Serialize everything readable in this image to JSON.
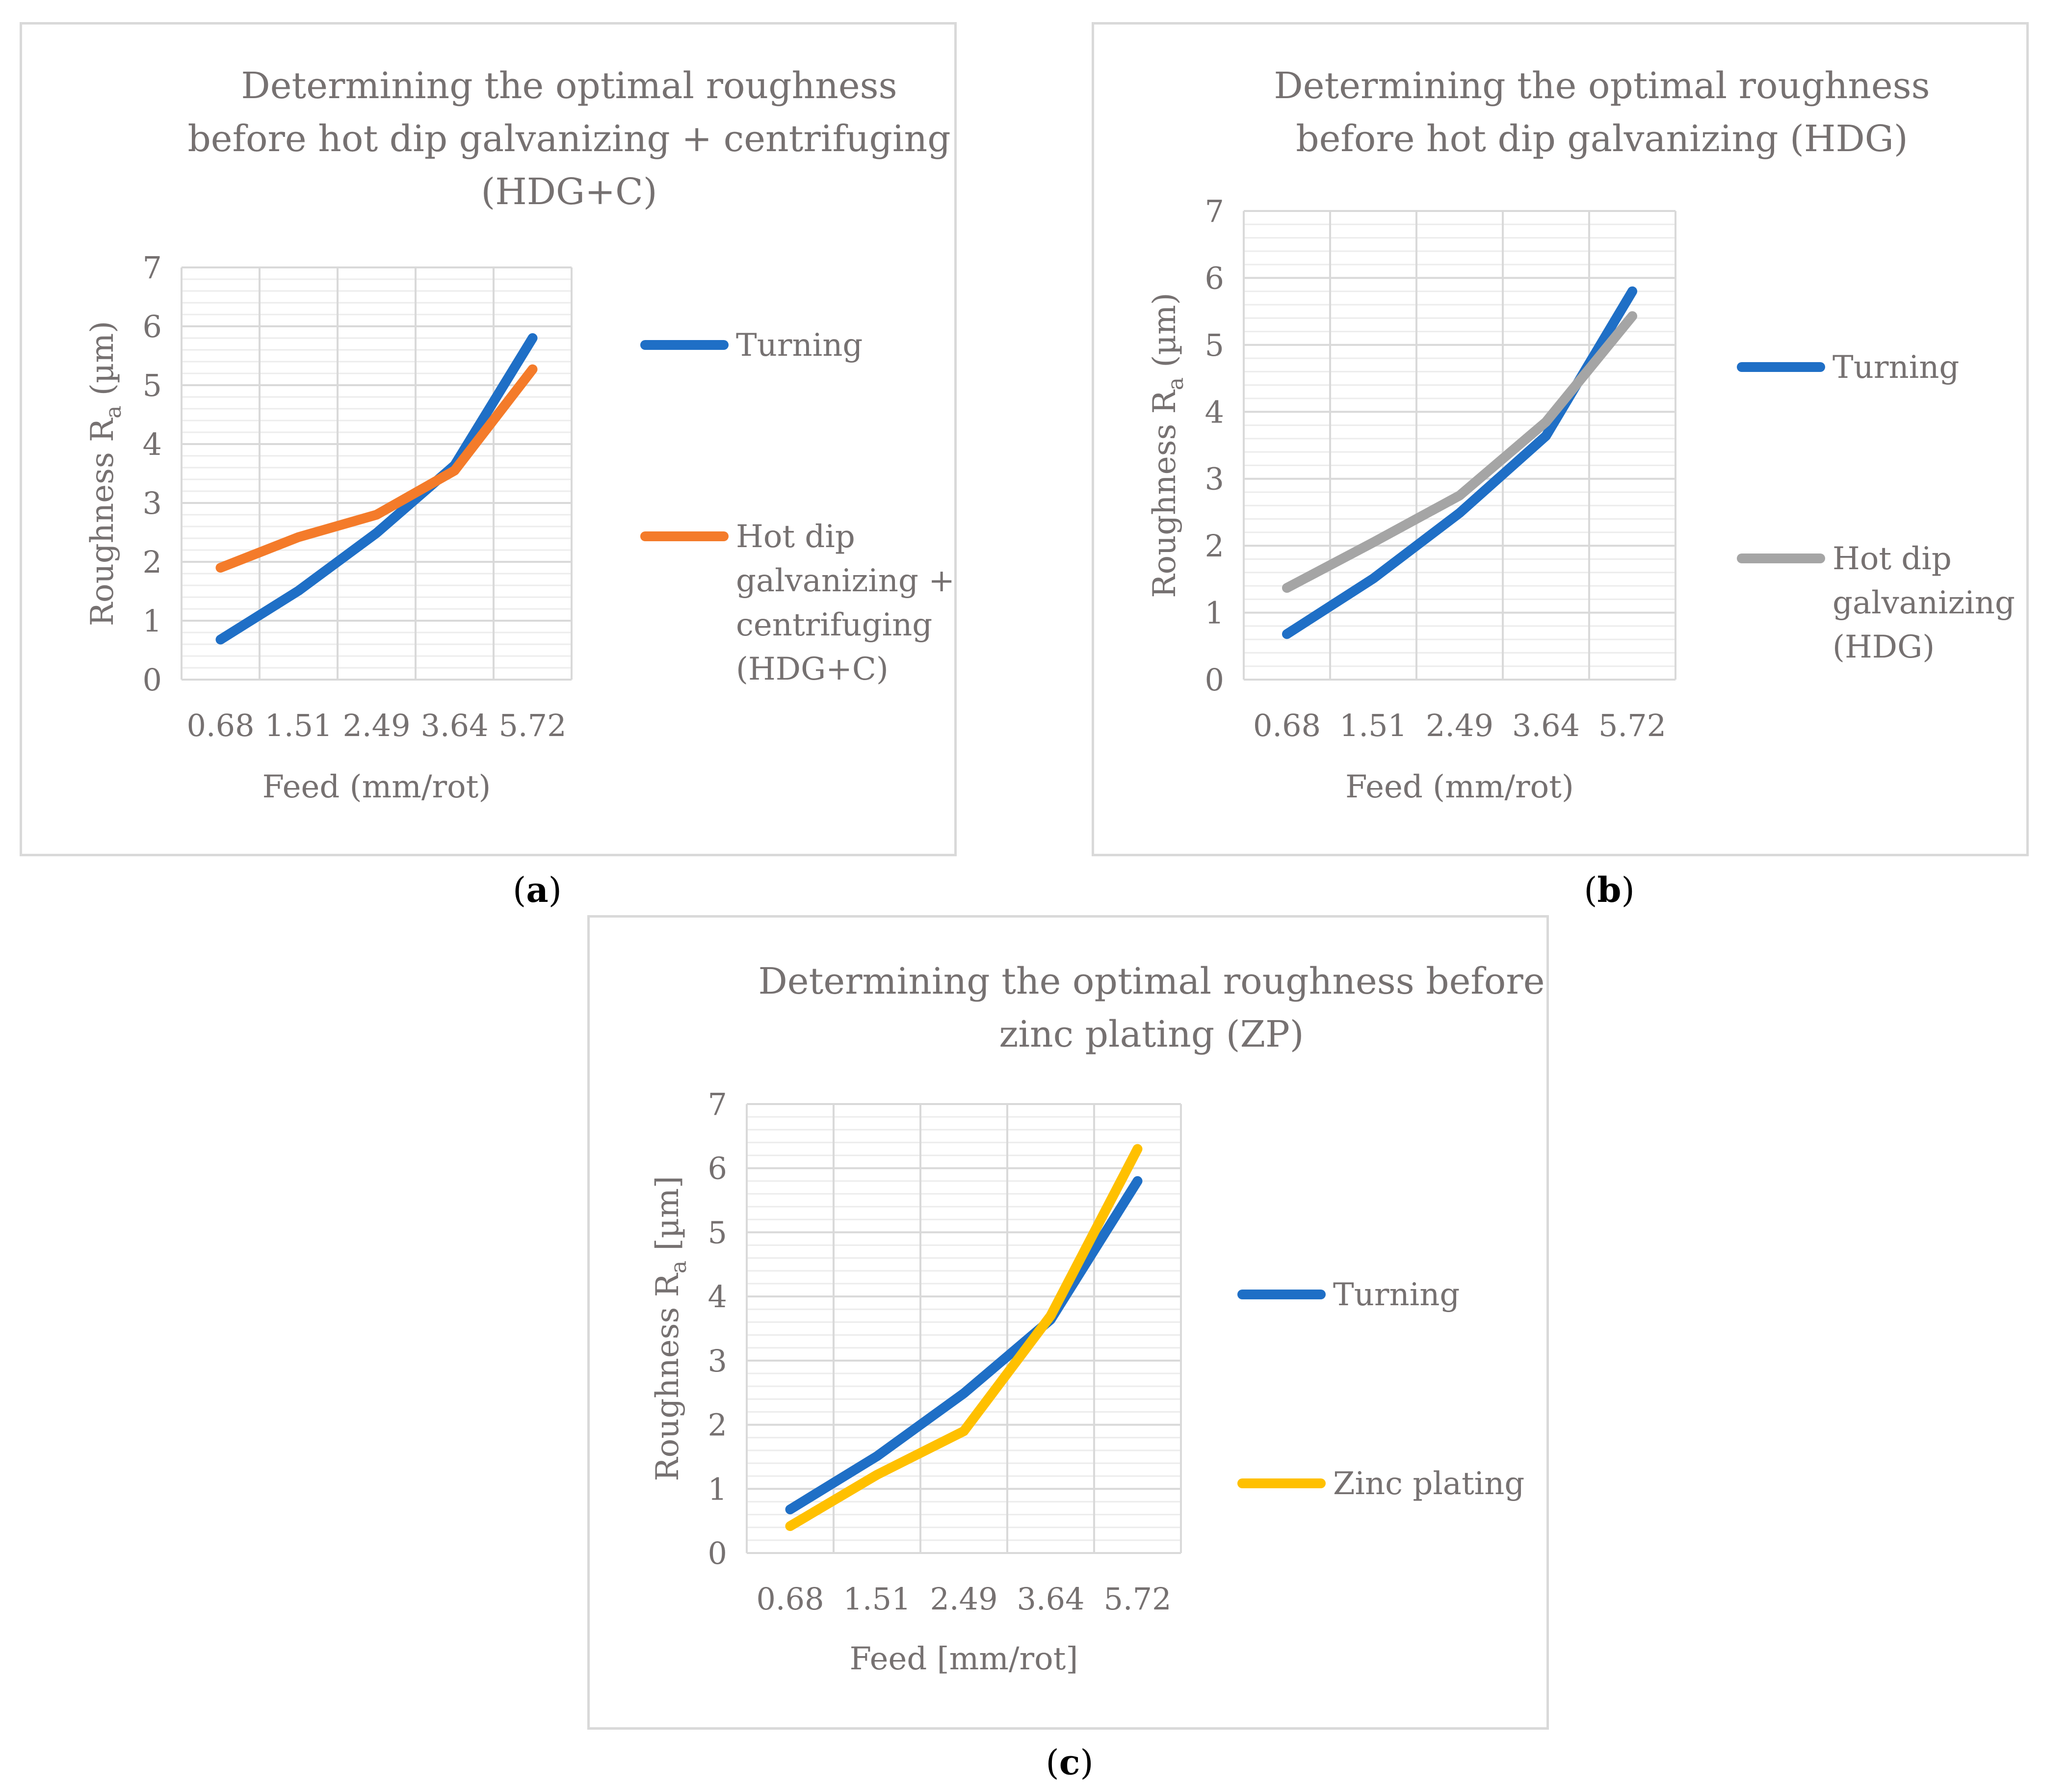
{
  "chart_data": [
    {
      "type": "line",
      "panel_label": "a",
      "title": [
        "Determining the optimal roughness",
        "before hot dip galvanizing + centrifuging",
        "(HDG+C)"
      ],
      "xlabel": "Feed (mm/rot)",
      "ylabel_main": "Roughness R",
      "ylabel_sub": "a",
      "ylabel_unit": " (µm)",
      "categories": [
        "0.68",
        "1.51",
        "2.49",
        "3.64",
        "5.72"
      ],
      "ylim": [
        0,
        7
      ],
      "yticks": [
        "0",
        "1",
        "2",
        "3",
        "4",
        "5",
        "6",
        "7"
      ],
      "grid": true,
      "legend_position": "right",
      "series": [
        {
          "name": [
            "Turning"
          ],
          "color": "#1f6fc6",
          "values": [
            0.68,
            1.51,
            2.49,
            3.64,
            5.8
          ]
        },
        {
          "name": [
            "Hot dip",
            "galvanizing +",
            "centrifuging",
            "(HDG+C)"
          ],
          "color": "#f47b2a",
          "values": [
            1.9,
            2.42,
            2.8,
            3.55,
            5.27
          ]
        }
      ]
    },
    {
      "type": "line",
      "panel_label": "b",
      "title": [
        "Determining the optimal roughness",
        "before hot dip galvanizing (HDG)"
      ],
      "xlabel": "Feed (mm/rot)",
      "ylabel_main": "Roughness R",
      "ylabel_sub": "a",
      "ylabel_unit": " (µm)",
      "categories": [
        "0.68",
        "1.51",
        "2.49",
        "3.64",
        "5.72"
      ],
      "ylim": [
        0,
        7
      ],
      "yticks": [
        "0",
        "1",
        "2",
        "3",
        "4",
        "5",
        "6",
        "7"
      ],
      "grid": true,
      "legend_position": "right",
      "series": [
        {
          "name": [
            "Turning"
          ],
          "color": "#1f6fc6",
          "values": [
            0.68,
            1.51,
            2.49,
            3.64,
            5.8
          ]
        },
        {
          "name": [
            "Hot dip",
            "galvanizing",
            "(HDG)"
          ],
          "color": "#a5a5a5",
          "values": [
            1.37,
            2.05,
            2.75,
            3.85,
            5.43
          ]
        }
      ]
    },
    {
      "type": "line",
      "panel_label": "c",
      "title": [
        "Determining the optimal roughness before",
        "zinc plating (ZP)"
      ],
      "xlabel": "Feed [mm/rot]",
      "ylabel_main": "Roughness R",
      "ylabel_sub": "a",
      "ylabel_unit": " [µm]",
      "categories": [
        "0.68",
        "1.51",
        "2.49",
        "3.64",
        "5.72"
      ],
      "ylim": [
        0,
        7
      ],
      "yticks": [
        "0",
        "1",
        "2",
        "3",
        "4",
        "5",
        "6",
        "7"
      ],
      "grid": true,
      "legend_position": "right",
      "series": [
        {
          "name": [
            "Turning"
          ],
          "color": "#1f6fc6",
          "values": [
            0.68,
            1.51,
            2.49,
            3.64,
            5.8
          ]
        },
        {
          "name": [
            "Zinc plating"
          ],
          "color": "#ffc000",
          "values": [
            0.42,
            1.22,
            1.9,
            3.7,
            6.3
          ]
        }
      ]
    }
  ]
}
